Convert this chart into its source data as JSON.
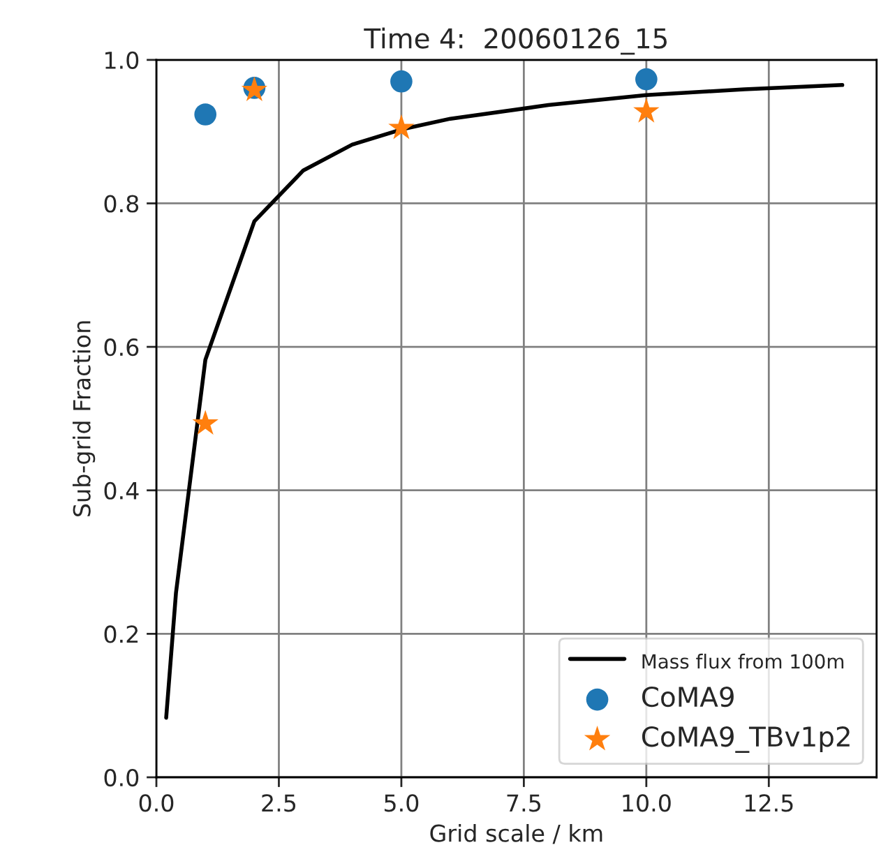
{
  "chart_data": {
    "type": "line",
    "title": "Time 4:  20060126_15",
    "xlabel": "Grid scale / km",
    "ylabel": "Sub-grid Fraction",
    "xlim": [
      0,
      14.7
    ],
    "xticks": [
      {
        "value": 0,
        "label": "0.0"
      },
      {
        "value": 2.5,
        "label": "2.5"
      },
      {
        "value": 5,
        "label": "5.0"
      },
      {
        "value": 7.5,
        "label": "7.5"
      },
      {
        "value": 10,
        "label": "10.0"
      },
      {
        "value": 12.5,
        "label": "12.5"
      }
    ],
    "ylim": [
      0,
      1
    ],
    "yticks": [
      {
        "value": 0,
        "label": "0.0"
      },
      {
        "value": 0.2,
        "label": "0.2"
      },
      {
        "value": 0.4,
        "label": "0.4"
      },
      {
        "value": 0.6,
        "label": "0.6"
      },
      {
        "value": 0.8,
        "label": "0.8"
      },
      {
        "value": 1,
        "label": "1.0"
      }
    ],
    "grid": true,
    "legend": "bottom right",
    "series": [
      {
        "name": "Mass flux from 100m",
        "color": "#000000",
        "marker": "none",
        "line_style": "solid",
        "x": [
          0.2,
          0.4,
          1,
          2,
          3,
          4,
          5,
          6,
          8,
          10,
          12,
          14
        ],
        "values": [
          0.083,
          0.257,
          0.582,
          0.775,
          0.846,
          0.882,
          0.903,
          0.918,
          0.937,
          0.951,
          0.959,
          0.965
        ]
      },
      {
        "name": "CoMA9",
        "type": "scatter",
        "color": "#1f77b4",
        "marker": "circle",
        "x": [
          1,
          2,
          5,
          10
        ],
        "values": [
          0.924,
          0.961,
          0.97,
          0.973
        ]
      },
      {
        "name": "CoMA9_TBv1p2",
        "type": "scatter",
        "color": "#ff7f0e",
        "marker": "star",
        "x": [
          1,
          2,
          5,
          10
        ],
        "values": [
          0.493,
          0.958,
          0.905,
          0.928
        ]
      }
    ]
  }
}
